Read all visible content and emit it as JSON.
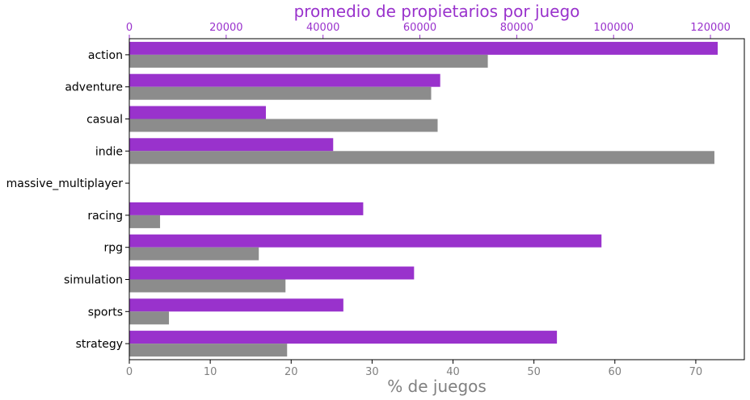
{
  "chart_data": {
    "type": "bar",
    "orientation": "horizontal",
    "categories": [
      "action",
      "adventure",
      "casual",
      "indie",
      "massive_multiplayer",
      "racing",
      "rpg",
      "simulation",
      "sports",
      "strategy"
    ],
    "series": [
      {
        "axis": "top",
        "color": "#9932CC",
        "values": [
          121500,
          64200,
          28200,
          42100,
          0,
          48300,
          97500,
          58800,
          44200,
          88300
        ]
      },
      {
        "axis": "bottom",
        "color": "#8C8C8C",
        "values": [
          44.3,
          37.3,
          38.1,
          72.3,
          0,
          3.8,
          16.0,
          19.3,
          4.9,
          19.5
        ]
      }
    ],
    "top_axis": {
      "label": "promedio de propietarios por juego",
      "range": [
        0,
        127000
      ],
      "ticks": [
        0,
        20000,
        40000,
        60000,
        80000,
        100000,
        120000
      ],
      "color": "#9932CC"
    },
    "bottom_axis": {
      "label": "%  de juegos",
      "range": [
        0,
        76
      ],
      "ticks": [
        0,
        10,
        20,
        30,
        40,
        50,
        60,
        70
      ],
      "color": "#808080"
    },
    "grid": false
  }
}
